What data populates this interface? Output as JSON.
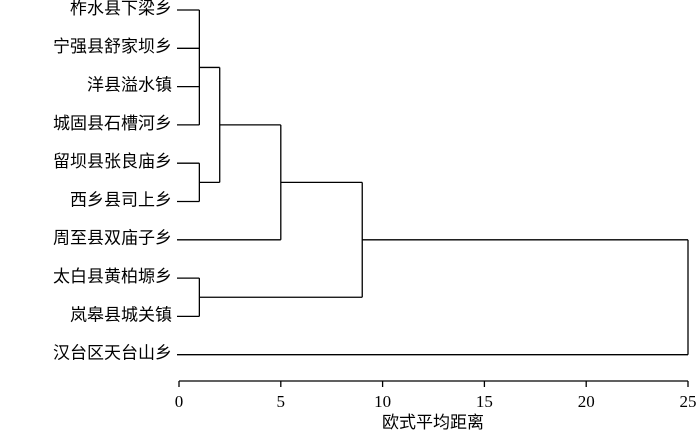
{
  "chart_data": {
    "type": "dendrogram",
    "leaves": [
      "柞水县下梁乡",
      "宁强县舒家坝乡",
      "洋县溢水镇",
      "城固县石槽河乡",
      "留坝县张良庙乡",
      "西乡县司上乡",
      "周至县双庙子乡",
      "太白县黄柏塬乡",
      "岚皋县城关镇",
      "汉台区天台山乡"
    ],
    "merges": [
      {
        "height": 1,
        "join": [
          0,
          1,
          2,
          3
        ]
      },
      {
        "height": 1,
        "join": [
          4,
          5
        ]
      },
      {
        "height": 2,
        "join": [
          10,
          11
        ]
      },
      {
        "height": 5,
        "join": [
          12,
          6
        ]
      },
      {
        "height": 1,
        "join": [
          7,
          8
        ]
      },
      {
        "height": 9,
        "join": [
          13,
          14
        ]
      },
      {
        "height": 25,
        "join": [
          15,
          9
        ]
      }
    ],
    "xlim": [
      0,
      25
    ],
    "xticks": [
      0,
      5,
      10,
      15,
      20,
      25
    ],
    "xlabel": "欧式平均距离",
    "color": "#000000"
  }
}
